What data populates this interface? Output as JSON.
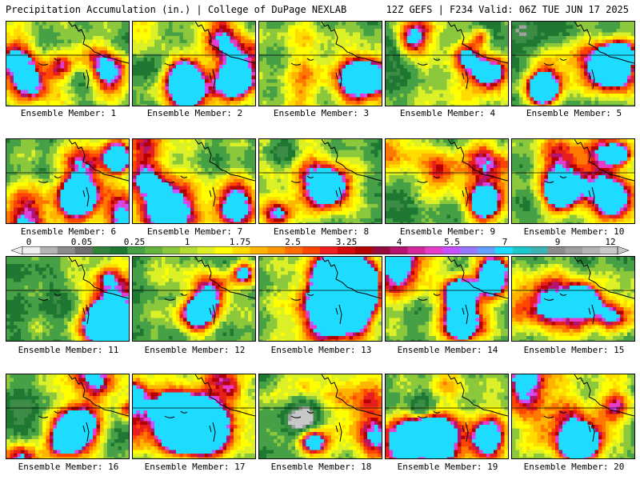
{
  "header": {
    "title": "Precipitation Accumulation (in.) | College of DuPage NEXLAB",
    "run_info": "12Z GEFS | F234 Valid: 06Z TUE JUN 17 2025"
  },
  "panels": [
    {
      "label": "Ensemble Member: 1"
    },
    {
      "label": "Ensemble Member: 2"
    },
    {
      "label": "Ensemble Member: 3"
    },
    {
      "label": "Ensemble Member: 4"
    },
    {
      "label": "Ensemble Member: 5"
    },
    {
      "label": "Ensemble Member: 6"
    },
    {
      "label": "Ensemble Member: 7"
    },
    {
      "label": "Ensemble Member: 8"
    },
    {
      "label": "Ensemble Member: 9"
    },
    {
      "label": "Ensemble Member: 10"
    },
    {
      "label": "Ensemble Member: 11"
    },
    {
      "label": "Ensemble Member: 12"
    },
    {
      "label": "Ensemble Member: 13"
    },
    {
      "label": "Ensemble Member: 14"
    },
    {
      "label": "Ensemble Member: 15"
    },
    {
      "label": "Ensemble Member: 16"
    },
    {
      "label": "Ensemble Member: 17"
    },
    {
      "label": "Ensemble Member: 18"
    },
    {
      "label": "Ensemble Member: 19"
    },
    {
      "label": "Ensemble Member: 20"
    }
  ],
  "colorbar": {
    "tick_labels": [
      "0",
      "0.05",
      "0.25",
      "1",
      "1.75",
      "2.5",
      "3.25",
      "4",
      "5.5",
      "7",
      "9",
      "12"
    ],
    "colors": [
      "#f0f0f0",
      "#b4b4b4",
      "#8c8c8c",
      "#6e6e6e",
      "#32823c",
      "#1e7832",
      "#46a046",
      "#64b43c",
      "#8cc83c",
      "#b4dc32",
      "#dcf028",
      "#ffff00",
      "#ffdc00",
      "#ffb400",
      "#ff9600",
      "#ff6e00",
      "#ff4600",
      "#f01e1e",
      "#d20a0a",
      "#b40000",
      "#960a3c",
      "#b4146e",
      "#d2289b",
      "#e63cc8",
      "#c850ff",
      "#9678ff",
      "#64a0ff",
      "#1edcff",
      "#1ec8c8",
      "#3cb4b4",
      "#8c8c8c",
      "#a0a0a0",
      "#b4b4b4",
      "#c8c8c8"
    ]
  }
}
